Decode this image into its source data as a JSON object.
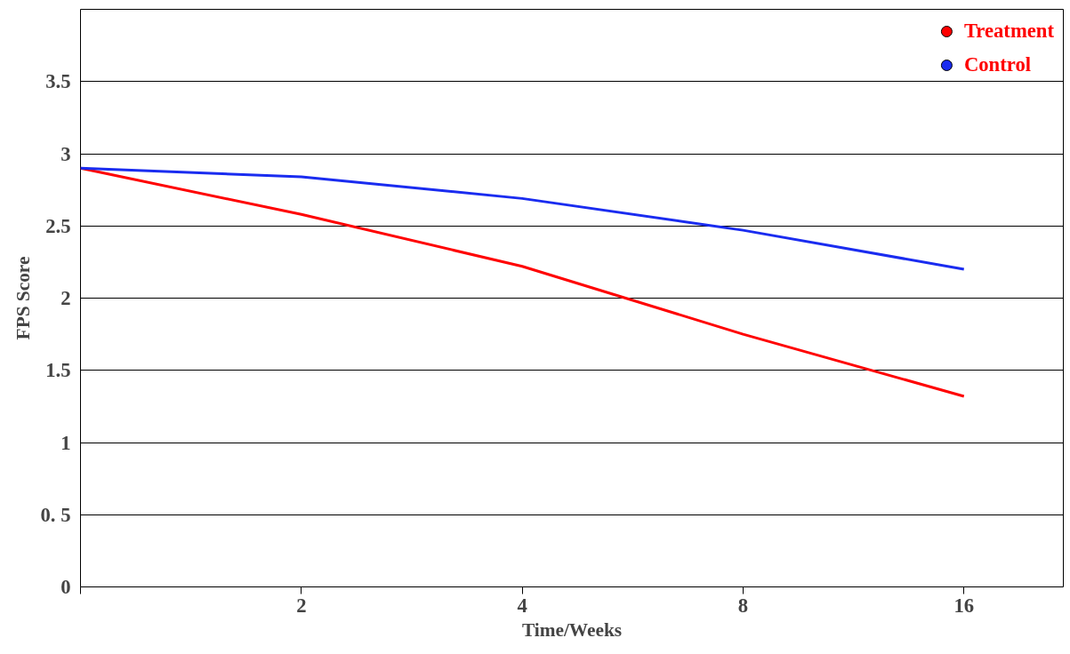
{
  "chart_data": {
    "type": "line",
    "xlabel": "Time/Weeks",
    "ylabel": "FPS Score",
    "categories": [
      null,
      "2",
      "4",
      "8",
      "16"
    ],
    "series": [
      {
        "name": "Treatment",
        "color": "#ff0000",
        "values": [
          2.9,
          2.58,
          2.22,
          1.75,
          1.32
        ]
      },
      {
        "name": "Control",
        "color": "#1a2cf0",
        "values": [
          2.9,
          2.84,
          2.69,
          2.47,
          2.2
        ]
      }
    ],
    "ylim": [
      0,
      4
    ],
    "yticks": [
      0,
      {
        "value": 0.5,
        "label": "0. 5"
      },
      1,
      1.5,
      2,
      2.5,
      3,
      3.5
    ],
    "grid": "y",
    "legend": "top right",
    "marker": "none",
    "line_style": "solid"
  }
}
